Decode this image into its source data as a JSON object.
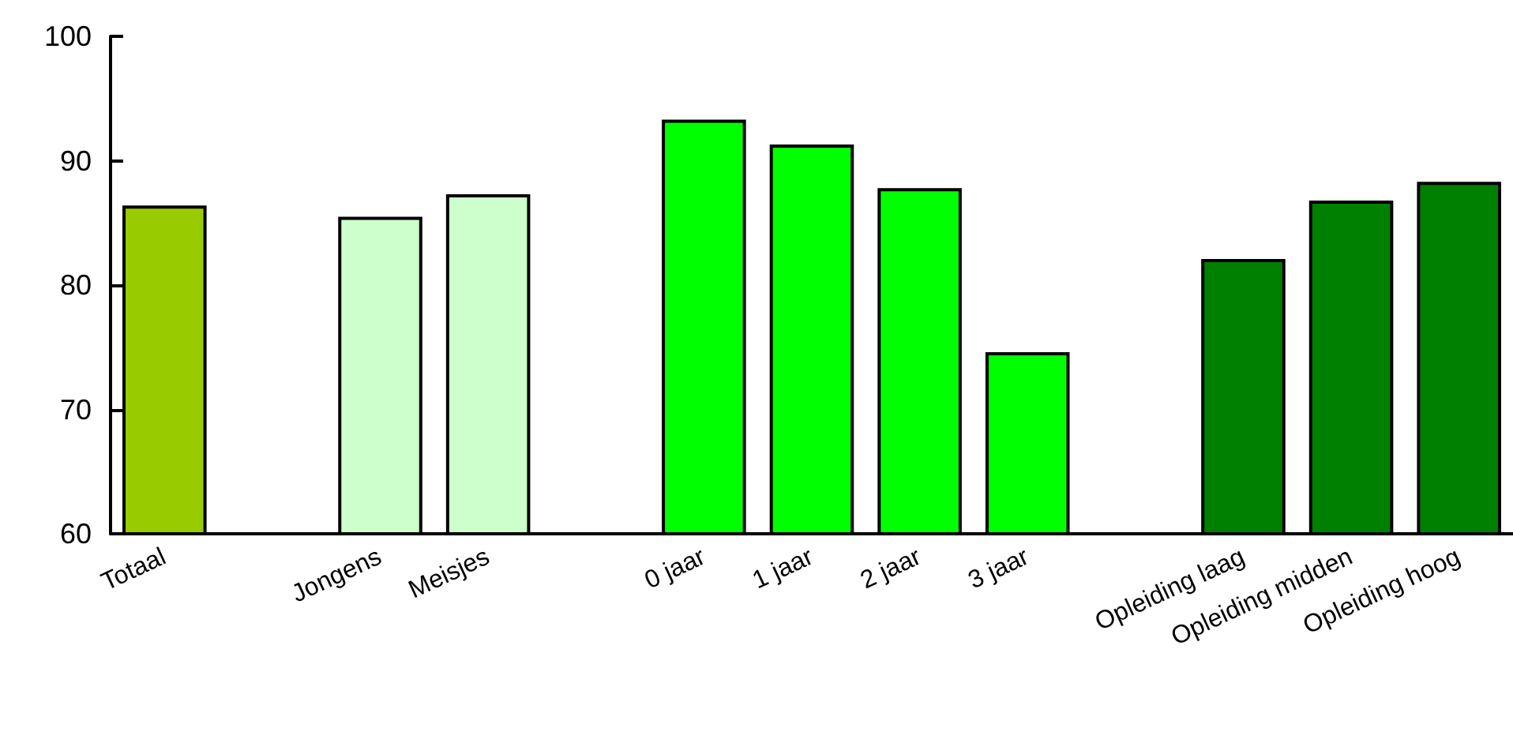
{
  "chart_data": {
    "type": "bar",
    "categories": [
      "Totaal",
      null,
      "Jongens",
      "Meisjes",
      null,
      "0 jaar",
      "1 jaar",
      "2 jaar",
      "3 jaar",
      null,
      "Opleiding laag",
      "Opleiding midden",
      "Opleiding hoog"
    ],
    "values": [
      86.4,
      null,
      85.5,
      87.3,
      null,
      93.3,
      91.3,
      87.8,
      74.6,
      null,
      82.1,
      86.8,
      88.3
    ],
    "colors": [
      "#99cc00",
      null,
      "#ccffcc",
      "#ccffcc",
      null,
      "#00ff00",
      "#00ff00",
      "#00ff00",
      "#00ff00",
      null,
      "#008000",
      "#008000",
      "#008000"
    ],
    "ylim": [
      60,
      100
    ],
    "yticks": [
      60,
      70,
      80,
      90,
      100
    ],
    "grid": false
  }
}
